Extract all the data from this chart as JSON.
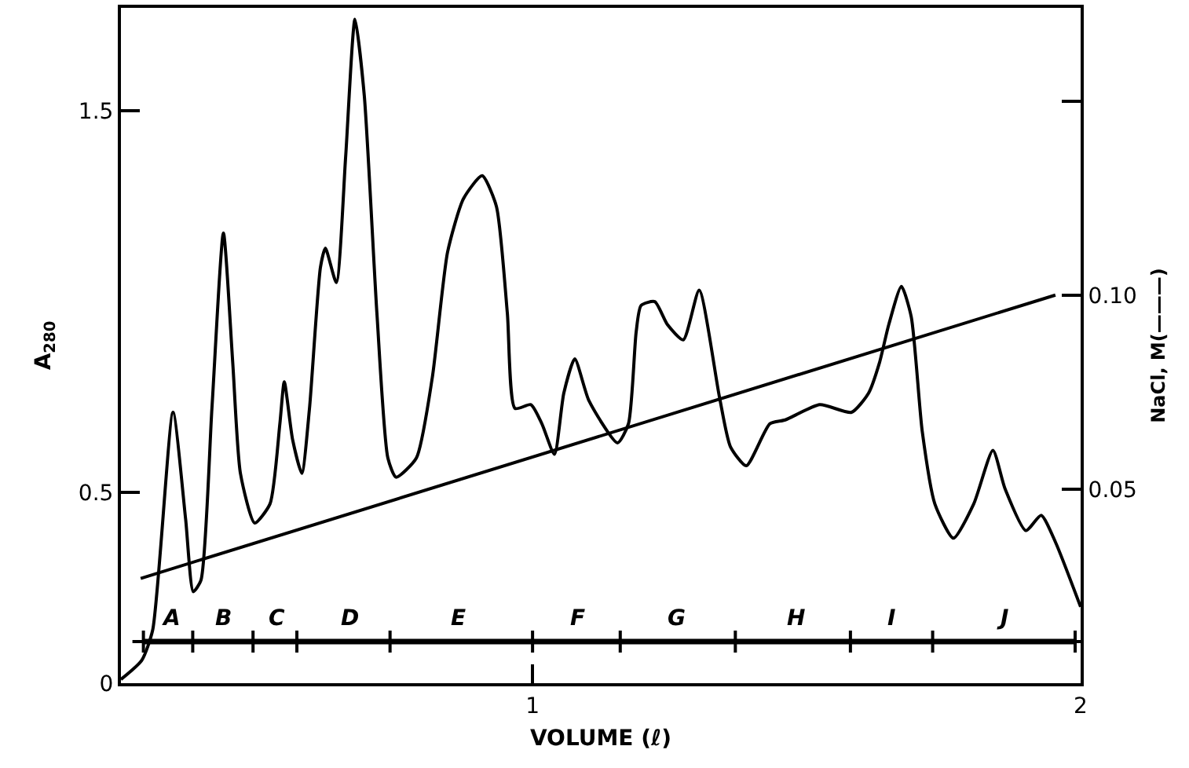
{
  "chart_data": {
    "type": "line",
    "xlabel": "VOLUME (ℓ)",
    "ylabel": "A$_{280}$",
    "y2label": "NaCl, M(———)",
    "xlim": [
      0.249,
      2
    ],
    "xticks": [
      1,
      2
    ],
    "ylim": [
      0,
      1.77
    ],
    "yticks": [
      0,
      0.5,
      {
        "value": 1.5,
        "label": "1.5"
      }
    ],
    "y2lim": [
      0,
      0.174
    ],
    "y2ticks": [
      0.05,
      {
        "value": 0.1,
        "label": "0.10"
      },
      {
        "value": 0.15,
        "label": null
      }
    ],
    "grid": false,
    "series": [
      {
        "color": "#000000",
        "x": [
          0.249,
          0.287,
          0.307,
          0.344,
          0.367,
          0.381,
          0.395,
          0.415,
          0.436,
          0.453,
          0.467,
          0.493,
          0.521,
          0.539,
          0.547,
          0.562,
          0.579,
          0.593,
          0.613,
          0.622,
          0.642,
          0.659,
          0.676,
          0.693,
          0.716,
          0.736,
          0.751,
          0.788,
          0.817,
          0.845,
          0.874,
          0.908,
          0.934,
          0.954,
          0.968,
          0.997,
          1.017,
          1.04,
          1.057,
          1.077,
          1.103,
          1.155,
          1.175,
          1.189,
          1.198,
          1.223,
          1.246,
          1.275,
          1.304,
          1.341,
          1.361,
          1.39,
          1.433,
          1.461,
          1.524,
          1.582,
          1.613,
          1.633,
          1.65,
          1.673,
          1.691,
          1.711,
          1.734,
          1.768,
          1.805,
          1.84,
          1.862,
          1.9,
          1.928,
          1.954,
          2.0
        ],
        "values": [
          0.01,
          0.06,
          0.14,
          0.71,
          0.43,
          0.24,
          0.27,
          0.72,
          1.18,
          0.84,
          0.55,
          0.42,
          0.47,
          0.68,
          0.79,
          0.64,
          0.55,
          0.72,
          1.09,
          1.14,
          1.05,
          1.38,
          1.74,
          1.54,
          0.97,
          0.59,
          0.54,
          0.59,
          0.8,
          1.13,
          1.27,
          1.33,
          1.25,
          0.97,
          0.72,
          0.73,
          0.68,
          0.6,
          0.76,
          0.85,
          0.74,
          0.63,
          0.68,
          0.92,
          0.99,
          1.0,
          0.94,
          0.9,
          1.03,
          0.75,
          0.62,
          0.57,
          0.68,
          0.69,
          0.73,
          0.71,
          0.76,
          0.84,
          0.94,
          1.04,
          0.96,
          0.66,
          0.47,
          0.38,
          0.47,
          0.61,
          0.51,
          0.4,
          0.44,
          0.37,
          0.2
        ]
      },
      {
        "color": "#000000",
        "axis": "y2",
        "x": [
          0.285,
          1.954
        ],
        "values": [
          0.027,
          0.1
        ]
      },
      {
        "color": "#000000",
        "marker": "cross",
        "x": [
          0.29,
          0.38,
          0.49,
          0.57,
          0.74,
          1.0,
          1.16,
          1.37,
          1.58,
          1.73,
          1.99
        ],
        "values": [
          0.109,
          0.109,
          0.109,
          0.109,
          0.109,
          0.109,
          0.109,
          0.109,
          0.109,
          0.109,
          0.109
        ]
      }
    ],
    "annotations": [
      {
        "text": "A",
        "x": 0.341,
        "y": 0.109
      },
      {
        "text": "B",
        "x": 0.438,
        "y": 0.109
      },
      {
        "text": "C",
        "x": 0.533,
        "y": 0.109
      },
      {
        "text": "D",
        "x": 0.668,
        "y": 0.109
      },
      {
        "text": "E",
        "x": 0.865,
        "y": 0.109
      },
      {
        "text": "F",
        "x": 1.083,
        "y": 0.109
      },
      {
        "text": "G",
        "x": 1.264,
        "y": 0.109
      },
      {
        "text": "H",
        "x": 1.481,
        "y": 0.109
      },
      {
        "text": "I",
        "x": 1.656,
        "y": 0.109
      },
      {
        "text": "J",
        "x": 1.857,
        "y": 0.109
      }
    ]
  }
}
